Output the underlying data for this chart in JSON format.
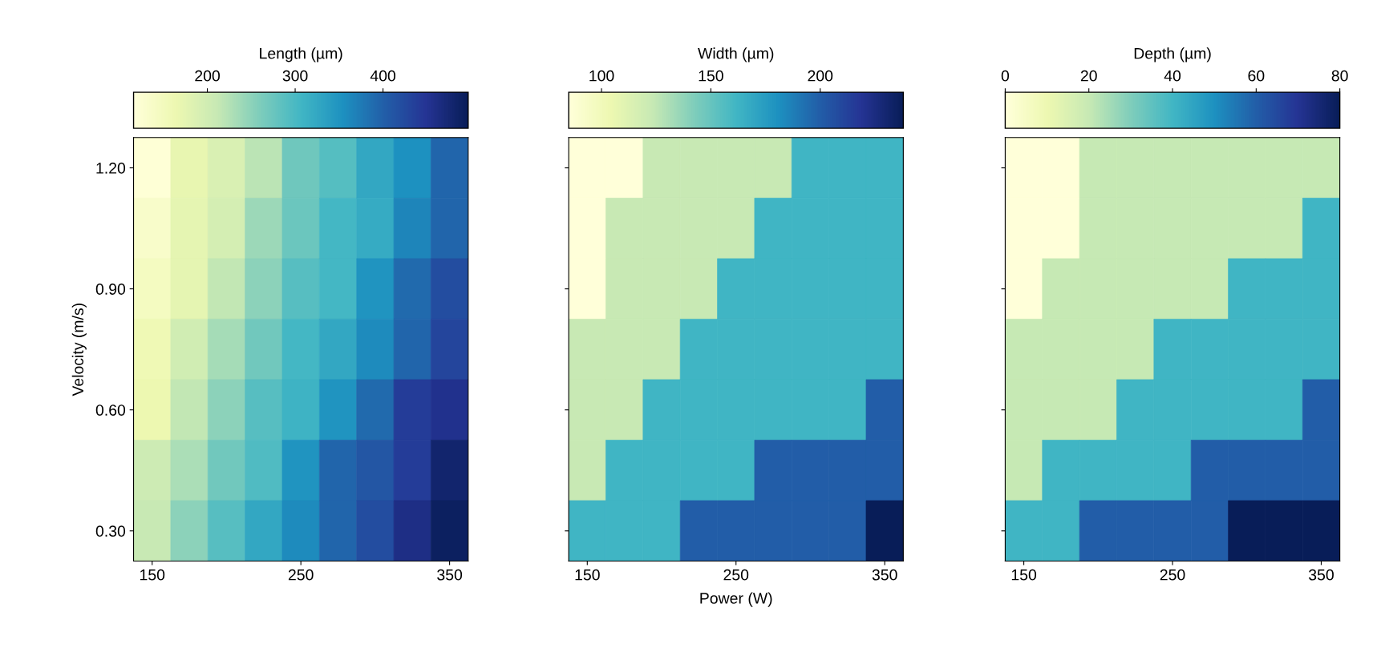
{
  "chart_data": [
    {
      "type": "heatmap",
      "ylabel": "Velocity (m/s)",
      "clabel": "Length (µm)",
      "x": [
        150,
        175,
        200,
        225,
        250,
        275,
        300,
        325,
        350
      ],
      "y": [
        1.2,
        1.05,
        0.9,
        0.75,
        0.6,
        0.45,
        0.3
      ],
      "xlim": [
        137.5,
        362.5
      ],
      "xticks": [
        150,
        250,
        350
      ],
      "ylim": [
        0.225,
        1.275
      ],
      "yticks": [
        {
          "value": 0.3,
          "label": "0.30"
        },
        {
          "value": 0.6,
          "label": "0.60"
        },
        {
          "value": 0.9,
          "label": "0.90"
        },
        {
          "value": 1.2,
          "label": "1.20"
        }
      ],
      "clim": [
        116,
        497
      ],
      "cticks": [
        200,
        300,
        400
      ],
      "cells": [
        [
          120,
          170,
          190,
          220,
          272,
          291,
          325,
          354,
          395
        ],
        [
          135,
          175,
          195,
          240,
          275,
          305,
          320,
          365,
          395
        ],
        [
          145,
          175,
          215,
          250,
          290,
          305,
          350,
          390,
          420
        ],
        [
          160,
          200,
          235,
          270,
          305,
          325,
          360,
          395,
          430
        ],
        [
          165,
          215,
          250,
          290,
          310,
          350,
          390,
          440,
          455
        ],
        [
          205,
          230,
          270,
          295,
          350,
          395,
          410,
          440,
          480
        ],
        [
          210,
          250,
          290,
          325,
          360,
          395,
          420,
          460,
          490
        ]
      ]
    },
    {
      "type": "heatmap",
      "xlabel": "Power (W)",
      "clabel": "Width (µm)",
      "tick_labels": "x",
      "x": [
        150,
        175,
        200,
        225,
        250,
        275,
        300,
        325,
        350
      ],
      "y": [
        1.2,
        1.05,
        0.9,
        0.75,
        0.6,
        0.45,
        0.3
      ],
      "xlim": [
        137.5,
        362.5
      ],
      "xticks": [
        150,
        250,
        350
      ],
      "ylim": [
        0.225,
        1.275
      ],
      "yticks": [
        {
          "value": 0.3,
          "label": null
        },
        {
          "value": 0.6,
          "label": null
        },
        {
          "value": 0.9,
          "label": null
        },
        {
          "value": 1.2,
          "label": null
        }
      ],
      "clim": [
        85,
        238
      ],
      "cticks": [
        100,
        150,
        200
      ],
      "cells": [
        [
          85,
          85,
          123,
          123,
          123,
          123,
          162,
          162,
          162
        ],
        [
          85,
          123,
          123,
          123,
          123,
          162,
          162,
          162,
          162
        ],
        [
          85,
          123,
          123,
          123,
          162,
          162,
          162,
          162,
          162
        ],
        [
          123,
          123,
          123,
          162,
          162,
          162,
          162,
          162,
          162
        ],
        [
          123,
          123,
          162,
          162,
          162,
          162,
          162,
          162,
          200
        ],
        [
          123,
          162,
          162,
          162,
          162,
          200,
          200,
          200,
          200
        ],
        [
          162,
          162,
          162,
          200,
          200,
          200,
          200,
          200,
          238
        ]
      ]
    },
    {
      "type": "heatmap",
      "clabel": "Depth (µm)",
      "tick_labels": "x",
      "x": [
        150,
        175,
        200,
        225,
        250,
        275,
        300,
        325,
        350
      ],
      "y": [
        1.2,
        1.05,
        0.9,
        0.75,
        0.6,
        0.45,
        0.3
      ],
      "xlim": [
        137.5,
        362.5
      ],
      "xticks": [
        150,
        250,
        350
      ],
      "ylim": [
        0.225,
        1.275
      ],
      "yticks": [
        {
          "value": 0.3,
          "label": null
        },
        {
          "value": 0.6,
          "label": null
        },
        {
          "value": 0.9,
          "label": null
        },
        {
          "value": 1.2,
          "label": null
        }
      ],
      "clim": [
        0,
        80
      ],
      "cticks": [
        0,
        20,
        40,
        60,
        80
      ],
      "cells": [
        [
          0,
          0,
          20,
          20,
          20,
          20,
          20,
          20,
          20
        ],
        [
          0,
          0,
          20,
          20,
          20,
          20,
          20,
          20,
          40
        ],
        [
          0,
          20,
          20,
          20,
          20,
          20,
          40,
          40,
          40
        ],
        [
          20,
          20,
          20,
          20,
          40,
          40,
          40,
          40,
          40
        ],
        [
          20,
          20,
          20,
          40,
          40,
          40,
          40,
          40,
          60
        ],
        [
          20,
          40,
          40,
          40,
          40,
          60,
          60,
          60,
          60
        ],
        [
          40,
          40,
          60,
          60,
          60,
          60,
          80,
          80,
          80
        ]
      ]
    }
  ]
}
